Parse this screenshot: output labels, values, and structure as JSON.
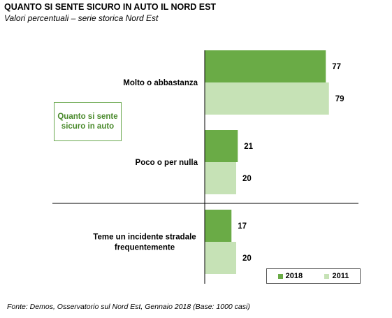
{
  "header": {
    "title": "QUANTO SI SENTE SICURO IN AUTO IL NORD EST",
    "subtitle": "Valori percentuali – serie storica Nord Est"
  },
  "callout": {
    "line1": "Quanto si sente",
    "line2": "sicuro in auto"
  },
  "source": "Fonte: Demos, Osservatorio sul Nord Est, Gennaio  2018 (Base: 1000 casi)",
  "colors": {
    "series_2018": "#6aab46",
    "series_2011": "#c6e2b6"
  },
  "chart_data": {
    "type": "bar",
    "orientation": "horizontal",
    "categories": [
      [
        "Molto o abbastanza"
      ],
      [
        "Poco o per nulla"
      ],
      [
        "Teme un incidente stradale",
        "frequentemente"
      ]
    ],
    "series": [
      {
        "name": "2018",
        "values": [
          77,
          21,
          17
        ]
      },
      {
        "name": "2011",
        "values": [
          79,
          20,
          20
        ]
      }
    ],
    "xlim": [
      0,
      100
    ],
    "legend": "bottom-right",
    "grid": false
  }
}
